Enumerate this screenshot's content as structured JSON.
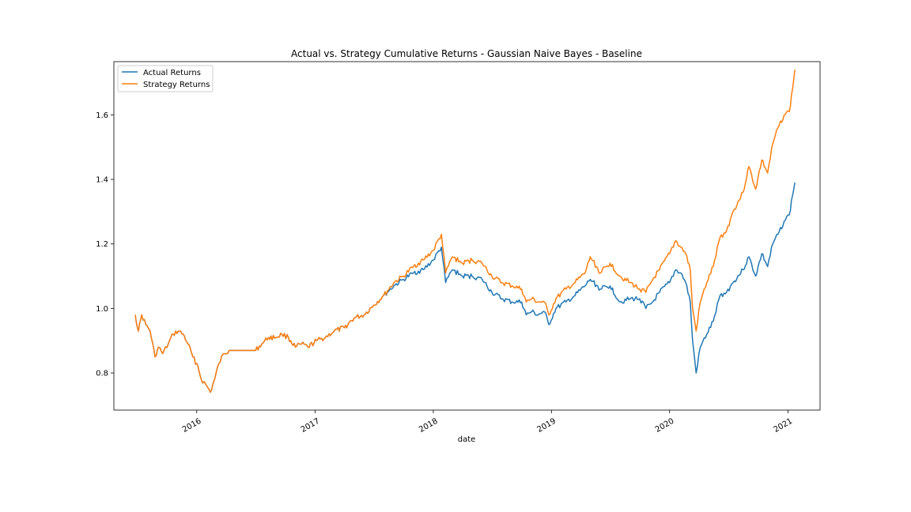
{
  "chart_data": {
    "type": "line",
    "title": "Actual vs. Strategy Cumulative Returns - Gaussian Naive Bayes - Baseline",
    "xlabel": "date",
    "ylabel": "",
    "xlim": [
      "2015-04-20",
      "2021-04-10"
    ],
    "ylim": [
      0.685,
      1.765
    ],
    "x_ticks": [
      "2016-01-01",
      "2017-01-01",
      "2018-01-01",
      "2019-01-01",
      "2020-01-01",
      "2021-01-01"
    ],
    "x_tick_labels": [
      "2016",
      "2017",
      "2018",
      "2019",
      "2020",
      "2021"
    ],
    "y_ticks": [
      0.8,
      1.0,
      1.2,
      1.4,
      1.6
    ],
    "y_tick_labels": [
      "0.8",
      "1.0",
      "1.2",
      "1.4",
      "1.6"
    ],
    "grid": false,
    "legend": "top-left",
    "series": [
      {
        "name": "Actual Returns",
        "color": "#1f77b4",
        "points": [
          [
            "2015-06-25",
            0.98
          ],
          [
            "2015-07-05",
            0.93
          ],
          [
            "2015-07-15",
            0.98
          ],
          [
            "2015-07-28",
            0.95
          ],
          [
            "2015-08-10",
            0.93
          ],
          [
            "2015-08-25",
            0.85
          ],
          [
            "2015-09-05",
            0.88
          ],
          [
            "2015-09-18",
            0.86
          ],
          [
            "2015-10-05",
            0.89
          ],
          [
            "2015-10-20",
            0.92
          ],
          [
            "2015-11-05",
            0.93
          ],
          [
            "2015-11-20",
            0.92
          ],
          [
            "2015-12-05",
            0.89
          ],
          [
            "2015-12-20",
            0.85
          ],
          [
            "2016-01-05",
            0.82
          ],
          [
            "2016-01-15",
            0.78
          ],
          [
            "2016-02-01",
            0.76
          ],
          [
            "2016-02-12",
            0.74
          ],
          [
            "2016-02-25",
            0.78
          ],
          [
            "2016-03-10",
            0.83
          ],
          [
            "2016-03-25",
            0.86
          ],
          [
            "2016-04-10",
            0.87
          ],
          [
            "2016-05-01",
            0.87
          ],
          [
            "2016-06-01",
            0.87
          ],
          [
            "2016-07-01",
            0.87
          ],
          [
            "2016-07-20",
            0.89
          ],
          [
            "2016-08-10",
            0.91
          ],
          [
            "2016-09-01",
            0.91
          ],
          [
            "2016-09-20",
            0.92
          ],
          [
            "2016-10-10",
            0.91
          ],
          [
            "2016-11-01",
            0.88
          ],
          [
            "2016-11-20",
            0.89
          ],
          [
            "2016-12-10",
            0.88
          ],
          [
            "2017-01-05",
            0.9
          ],
          [
            "2017-02-01",
            0.91
          ],
          [
            "2017-03-01",
            0.93
          ],
          [
            "2017-04-01",
            0.94
          ],
          [
            "2017-05-01",
            0.97
          ],
          [
            "2017-06-01",
            0.98
          ],
          [
            "2017-07-01",
            1.01
          ],
          [
            "2017-08-01",
            1.04
          ],
          [
            "2017-09-01",
            1.07
          ],
          [
            "2017-10-01",
            1.09
          ],
          [
            "2017-11-01",
            1.11
          ],
          [
            "2017-12-01",
            1.12
          ],
          [
            "2018-01-01",
            1.15
          ],
          [
            "2018-01-26",
            1.19
          ],
          [
            "2018-02-08",
            1.08
          ],
          [
            "2018-03-01",
            1.12
          ],
          [
            "2018-04-01",
            1.1
          ],
          [
            "2018-05-01",
            1.1
          ],
          [
            "2018-06-01",
            1.09
          ],
          [
            "2018-07-01",
            1.05
          ],
          [
            "2018-08-01",
            1.03
          ],
          [
            "2018-09-01",
            1.02
          ],
          [
            "2018-10-01",
            1.02
          ],
          [
            "2018-10-15",
            0.98
          ],
          [
            "2018-11-01",
            0.99
          ],
          [
            "2018-11-20",
            0.98
          ],
          [
            "2018-12-10",
            0.99
          ],
          [
            "2018-12-24",
            0.95
          ],
          [
            "2019-01-15",
            1.0
          ],
          [
            "2019-02-15",
            1.02
          ],
          [
            "2019-03-15",
            1.04
          ],
          [
            "2019-04-15",
            1.07
          ],
          [
            "2019-05-01",
            1.09
          ],
          [
            "2019-06-01",
            1.06
          ],
          [
            "2019-07-01",
            1.07
          ],
          [
            "2019-08-01",
            1.02
          ],
          [
            "2019-09-01",
            1.03
          ],
          [
            "2019-10-01",
            1.03
          ],
          [
            "2019-10-20",
            1.0
          ],
          [
            "2019-11-10",
            1.02
          ],
          [
            "2019-12-01",
            1.05
          ],
          [
            "2020-01-01",
            1.08
          ],
          [
            "2020-01-20",
            1.12
          ],
          [
            "2020-02-05",
            1.11
          ],
          [
            "2020-02-20",
            1.08
          ],
          [
            "2020-03-05",
            1.02
          ],
          [
            "2020-03-12",
            0.9
          ],
          [
            "2020-03-23",
            0.8
          ],
          [
            "2020-04-05",
            0.88
          ],
          [
            "2020-04-25",
            0.92
          ],
          [
            "2020-05-15",
            0.96
          ],
          [
            "2020-06-05",
            1.04
          ],
          [
            "2020-06-25",
            1.05
          ],
          [
            "2020-07-15",
            1.08
          ],
          [
            "2020-08-15",
            1.12
          ],
          [
            "2020-09-02",
            1.16
          ],
          [
            "2020-09-23",
            1.1
          ],
          [
            "2020-10-12",
            1.17
          ],
          [
            "2020-10-30",
            1.13
          ],
          [
            "2020-11-15",
            1.2
          ],
          [
            "2020-12-01",
            1.23
          ],
          [
            "2020-12-20",
            1.27
          ],
          [
            "2021-01-05",
            1.29
          ],
          [
            "2021-01-15",
            1.35
          ],
          [
            "2021-01-22",
            1.39
          ]
        ]
      },
      {
        "name": "Strategy Returns",
        "color": "#ff7f0e",
        "points": [
          [
            "2015-06-25",
            0.98
          ],
          [
            "2015-07-05",
            0.93
          ],
          [
            "2015-07-15",
            0.98
          ],
          [
            "2015-07-28",
            0.95
          ],
          [
            "2015-08-10",
            0.93
          ],
          [
            "2015-08-25",
            0.85
          ],
          [
            "2015-09-05",
            0.88
          ],
          [
            "2015-09-18",
            0.86
          ],
          [
            "2015-10-05",
            0.89
          ],
          [
            "2015-10-20",
            0.92
          ],
          [
            "2015-11-05",
            0.93
          ],
          [
            "2015-11-20",
            0.92
          ],
          [
            "2015-12-05",
            0.89
          ],
          [
            "2015-12-20",
            0.85
          ],
          [
            "2016-01-05",
            0.82
          ],
          [
            "2016-01-15",
            0.78
          ],
          [
            "2016-02-01",
            0.76
          ],
          [
            "2016-02-12",
            0.74
          ],
          [
            "2016-02-25",
            0.78
          ],
          [
            "2016-03-10",
            0.83
          ],
          [
            "2016-03-25",
            0.86
          ],
          [
            "2016-04-10",
            0.87
          ],
          [
            "2016-05-01",
            0.87
          ],
          [
            "2016-06-01",
            0.87
          ],
          [
            "2016-07-01",
            0.87
          ],
          [
            "2016-07-20",
            0.89
          ],
          [
            "2016-08-10",
            0.91
          ],
          [
            "2016-09-01",
            0.91
          ],
          [
            "2016-09-20",
            0.92
          ],
          [
            "2016-10-10",
            0.91
          ],
          [
            "2016-11-01",
            0.88
          ],
          [
            "2016-11-20",
            0.89
          ],
          [
            "2016-12-10",
            0.88
          ],
          [
            "2017-01-05",
            0.9
          ],
          [
            "2017-02-01",
            0.91
          ],
          [
            "2017-03-01",
            0.93
          ],
          [
            "2017-04-01",
            0.94
          ],
          [
            "2017-05-01",
            0.97
          ],
          [
            "2017-06-01",
            0.98
          ],
          [
            "2017-07-01",
            1.01
          ],
          [
            "2017-08-01",
            1.04
          ],
          [
            "2017-09-01",
            1.08
          ],
          [
            "2017-10-01",
            1.1
          ],
          [
            "2017-11-01",
            1.13
          ],
          [
            "2017-12-01",
            1.15
          ],
          [
            "2018-01-01",
            1.18
          ],
          [
            "2018-01-26",
            1.23
          ],
          [
            "2018-02-08",
            1.11
          ],
          [
            "2018-03-01",
            1.16
          ],
          [
            "2018-04-01",
            1.14
          ],
          [
            "2018-05-01",
            1.15
          ],
          [
            "2018-06-01",
            1.14
          ],
          [
            "2018-07-01",
            1.1
          ],
          [
            "2018-08-01",
            1.08
          ],
          [
            "2018-09-01",
            1.07
          ],
          [
            "2018-10-01",
            1.06
          ],
          [
            "2018-10-15",
            1.02
          ],
          [
            "2018-11-01",
            1.03
          ],
          [
            "2018-11-20",
            1.02
          ],
          [
            "2018-12-10",
            1.02
          ],
          [
            "2018-12-24",
            0.98
          ],
          [
            "2019-01-15",
            1.03
          ],
          [
            "2019-02-15",
            1.06
          ],
          [
            "2019-03-15",
            1.08
          ],
          [
            "2019-04-15",
            1.11
          ],
          [
            "2019-05-01",
            1.16
          ],
          [
            "2019-06-01",
            1.11
          ],
          [
            "2019-07-01",
            1.14
          ],
          [
            "2019-08-01",
            1.1
          ],
          [
            "2019-09-01",
            1.08
          ],
          [
            "2019-10-01",
            1.06
          ],
          [
            "2019-10-20",
            1.05
          ],
          [
            "2019-11-10",
            1.09
          ],
          [
            "2019-12-01",
            1.12
          ],
          [
            "2020-01-01",
            1.17
          ],
          [
            "2020-01-20",
            1.21
          ],
          [
            "2020-02-05",
            1.19
          ],
          [
            "2020-02-20",
            1.17
          ],
          [
            "2020-03-05",
            1.12
          ],
          [
            "2020-03-12",
            1.0
          ],
          [
            "2020-03-23",
            0.93
          ],
          [
            "2020-04-05",
            1.02
          ],
          [
            "2020-04-25",
            1.08
          ],
          [
            "2020-05-15",
            1.13
          ],
          [
            "2020-06-05",
            1.22
          ],
          [
            "2020-06-25",
            1.24
          ],
          [
            "2020-07-15",
            1.3
          ],
          [
            "2020-08-15",
            1.36
          ],
          [
            "2020-09-02",
            1.44
          ],
          [
            "2020-09-23",
            1.37
          ],
          [
            "2020-10-12",
            1.46
          ],
          [
            "2020-10-30",
            1.42
          ],
          [
            "2020-11-15",
            1.51
          ],
          [
            "2020-12-01",
            1.56
          ],
          [
            "2020-12-20",
            1.6
          ],
          [
            "2021-01-05",
            1.61
          ],
          [
            "2021-01-15",
            1.68
          ],
          [
            "2021-01-22",
            1.74
          ]
        ]
      }
    ]
  }
}
